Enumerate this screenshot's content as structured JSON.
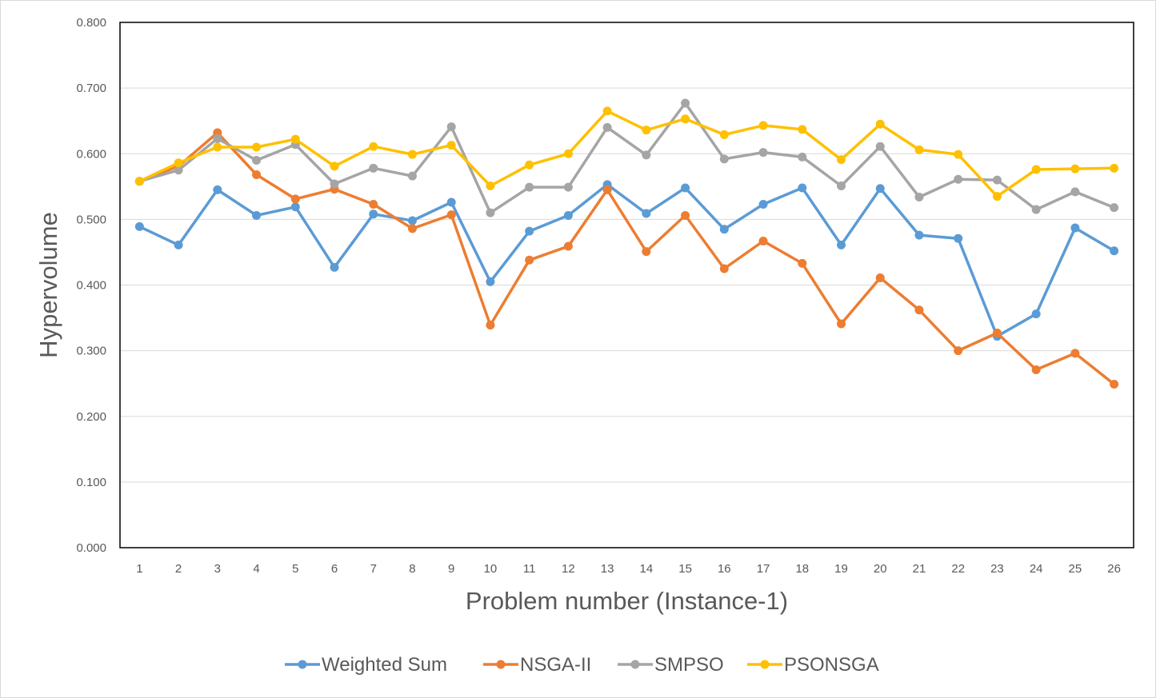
{
  "chart_data": {
    "type": "line",
    "title": "",
    "xlabel": "Problem number (Instance-1)",
    "ylabel": "Hypervolume",
    "ylim": [
      0,
      0.8
    ],
    "y_ticks": [
      "0.000",
      "0.100",
      "0.200",
      "0.300",
      "0.400",
      "0.500",
      "0.600",
      "0.700",
      "0.800"
    ],
    "grid": true,
    "legend_position": "bottom",
    "categories": [
      "1",
      "2",
      "3",
      "4",
      "5",
      "6",
      "7",
      "8",
      "9",
      "10",
      "11",
      "12",
      "13",
      "14",
      "15",
      "16",
      "17",
      "18",
      "19",
      "20",
      "21",
      "22",
      "23",
      "24",
      "25",
      "26"
    ],
    "series": [
      {
        "name": "Weighted Sum",
        "color": "#5B9BD5",
        "values": [
          0.489,
          0.461,
          0.545,
          0.506,
          0.519,
          0.427,
          0.508,
          0.498,
          0.526,
          0.405,
          0.482,
          0.506,
          0.553,
          0.509,
          0.548,
          0.485,
          0.523,
          0.548,
          0.461,
          0.547,
          0.476,
          0.471,
          0.322,
          0.356,
          0.487,
          0.452
        ]
      },
      {
        "name": "NSGA-II",
        "color": "#ED7D31",
        "values": [
          0.558,
          0.581,
          0.632,
          0.568,
          0.531,
          0.546,
          0.523,
          0.486,
          0.507,
          0.339,
          0.438,
          0.459,
          0.545,
          0.451,
          0.506,
          0.425,
          0.467,
          0.433,
          0.341,
          0.411,
          0.362,
          0.3,
          0.327,
          0.271,
          0.296,
          0.249
        ]
      },
      {
        "name": "SMPSO",
        "color": "#A5A5A5",
        "values": [
          0.558,
          0.575,
          0.623,
          0.59,
          0.614,
          0.554,
          0.578,
          0.566,
          0.641,
          0.51,
          0.549,
          0.549,
          0.64,
          0.598,
          0.677,
          0.592,
          0.602,
          0.595,
          0.551,
          0.611,
          0.534,
          0.561,
          0.56,
          0.515,
          0.542,
          0.518
        ]
      },
      {
        "name": "PSONSGA",
        "color": "#FFC000",
        "values": [
          0.558,
          0.586,
          0.61,
          0.61,
          0.622,
          0.581,
          0.611,
          0.599,
          0.613,
          0.551,
          0.583,
          0.6,
          0.665,
          0.636,
          0.653,
          0.629,
          0.643,
          0.637,
          0.591,
          0.645,
          0.606,
          0.599,
          0.535,
          0.576,
          0.577,
          0.578
        ]
      }
    ]
  }
}
